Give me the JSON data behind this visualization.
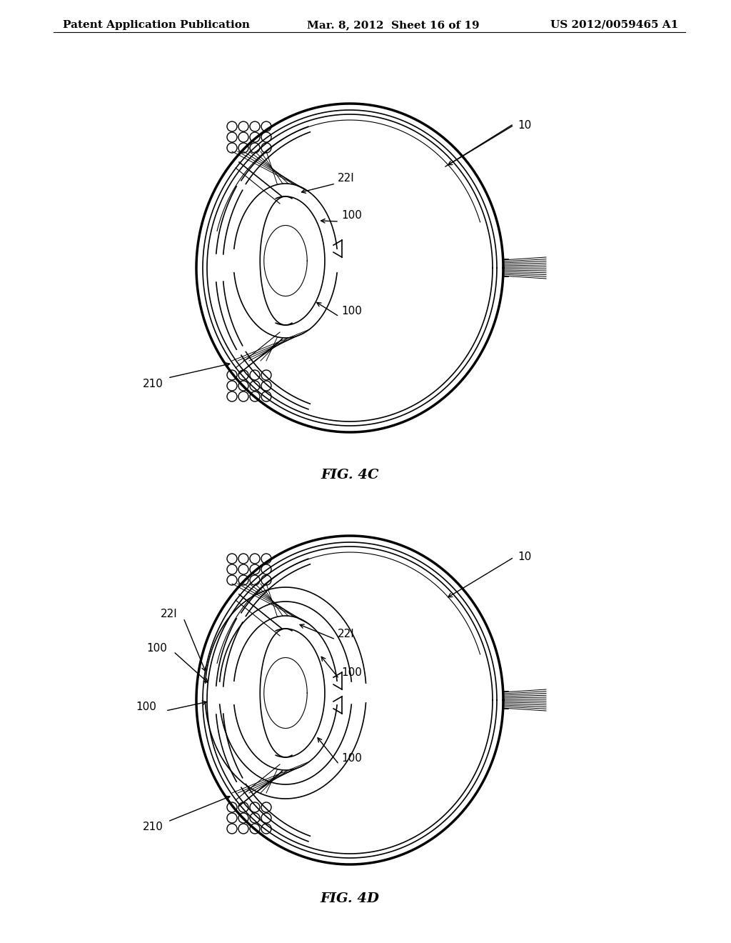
{
  "background_color": "#ffffff",
  "header_left": "Patent Application Publication",
  "header_center": "Mar. 8, 2012  Sheet 16 of 19",
  "header_right": "US 2012/0059465 A1",
  "header_fontsize": 11,
  "fig_label_4c": "FIG. 4C",
  "fig_label_4d": "FIG. 4D",
  "fig_label_fontsize": 14,
  "line_color": "#000000",
  "thin_lw": 0.8,
  "med_lw": 1.2,
  "thick_lw": 2.5
}
